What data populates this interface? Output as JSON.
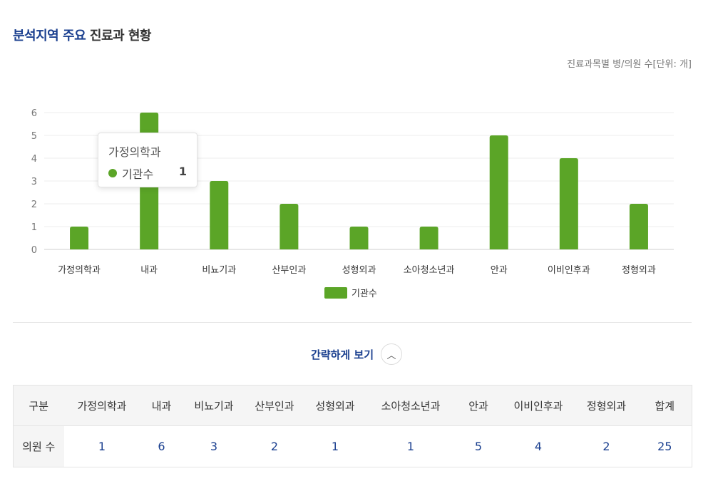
{
  "header": {
    "title_accent": "분석지역 주요",
    "title_rest": "진료과 현황",
    "unit_note": "진료과목별 병/의원 수[단위: 개]"
  },
  "colors": {
    "accent": "#1a3f8f",
    "bar": "#5ba527"
  },
  "chart_data": {
    "type": "bar",
    "categories": [
      "가정의학과",
      "내과",
      "비뇨기과",
      "산부인과",
      "성형외과",
      "소아청소년과",
      "안과",
      "이비인후과",
      "정형외과"
    ],
    "series": [
      {
        "name": "기관수",
        "values": [
          1,
          6,
          3,
          2,
          1,
          1,
          5,
          4,
          2
        ]
      }
    ],
    "ylim": [
      0,
      6
    ],
    "yticks": [
      "0",
      "1",
      "2",
      "3",
      "4",
      "5",
      "6"
    ],
    "grid": true,
    "legend": "bottom-center"
  },
  "tooltip": {
    "title": "가정의학과",
    "label": "기관수",
    "value": "1"
  },
  "toggle": {
    "label": "간략하게 보기",
    "icon": "chevron-up-icon"
  },
  "table": {
    "headers": [
      "구분",
      "가정의학과",
      "내과",
      "비뇨기과",
      "산부인과",
      "성형외과",
      "소아청소년과",
      "안과",
      "이비인후과",
      "정형외과",
      "합계"
    ],
    "row": [
      "의원 수",
      "1",
      "6",
      "3",
      "2",
      "1",
      "1",
      "5",
      "4",
      "2",
      "25"
    ]
  }
}
